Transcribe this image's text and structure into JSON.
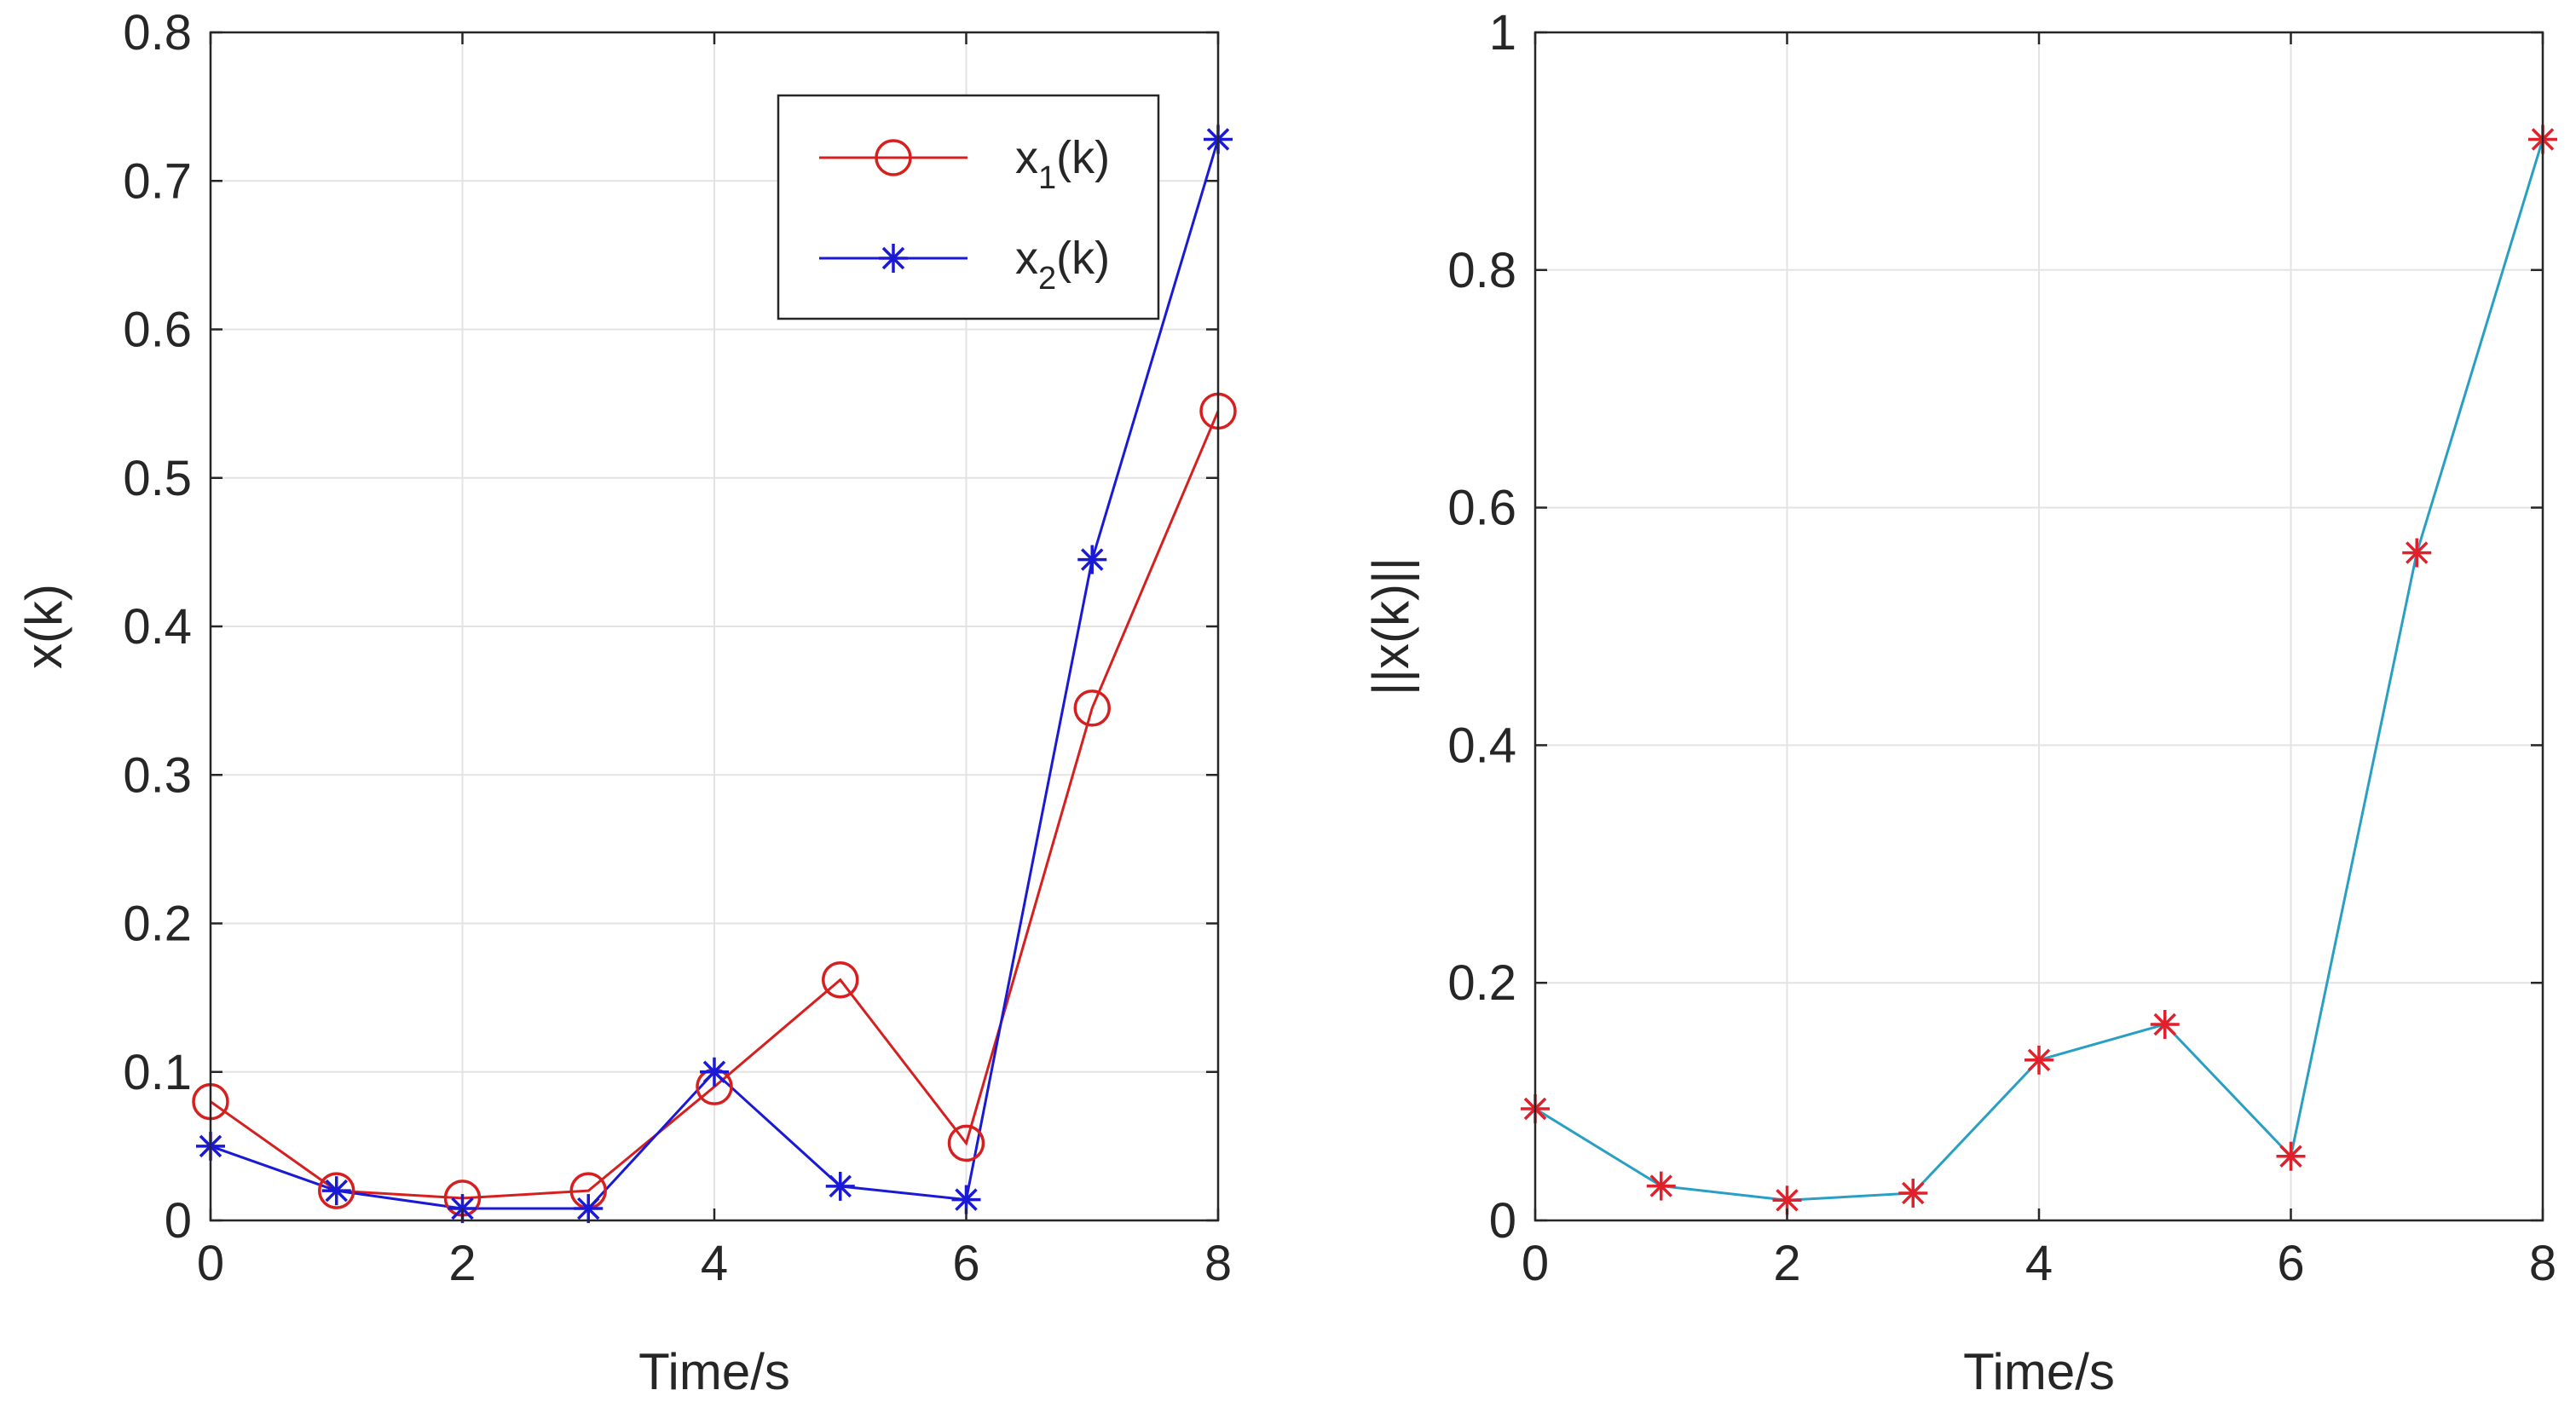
{
  "chart_data": [
    {
      "type": "line",
      "title": "",
      "xlabel": "Time/s",
      "ylabel": "x(k)",
      "xlim": [
        0,
        8
      ],
      "ylim": [
        0,
        0.8
      ],
      "xticks": [
        0,
        2,
        4,
        6,
        8
      ],
      "yticks": [
        0,
        0.1,
        0.2,
        0.3,
        0.4,
        0.5,
        0.6,
        0.7,
        0.8
      ],
      "xtick_labels": [
        "0",
        "2",
        "4",
        "6",
        "8"
      ],
      "ytick_labels": [
        "0",
        "0.1",
        "0.2",
        "0.3",
        "0.4",
        "0.5",
        "0.6",
        "0.7",
        "0.8"
      ],
      "grid": true,
      "legend_position": "top-right",
      "x": [
        0,
        1,
        2,
        3,
        4,
        5,
        6,
        7,
        8
      ],
      "series": [
        {
          "name": "x1(k)",
          "legend_base": "x",
          "legend_sub": "1",
          "legend_suffix": "(k)",
          "color": "#d62020",
          "marker": "circle",
          "values": [
            0.08,
            0.02,
            0.015,
            0.02,
            0.09,
            0.162,
            0.052,
            0.345,
            0.545
          ]
        },
        {
          "name": "x2(k)",
          "legend_base": "x",
          "legend_sub": "2",
          "legend_suffix": "(k)",
          "color": "#1a1ad6",
          "marker": "asterisk",
          "values": [
            0.05,
            0.02,
            0.008,
            0.008,
            0.1,
            0.023,
            0.014,
            0.445,
            0.728
          ]
        }
      ]
    },
    {
      "type": "line",
      "title": "",
      "xlabel": "Time/s",
      "ylabel": "||x(k)||",
      "xlim": [
        0,
        8
      ],
      "ylim": [
        0,
        1
      ],
      "xticks": [
        0,
        2,
        4,
        6,
        8
      ],
      "yticks": [
        0,
        0.2,
        0.4,
        0.6,
        0.8,
        1
      ],
      "xtick_labels": [
        "0",
        "2",
        "4",
        "6",
        "8"
      ],
      "ytick_labels": [
        "0",
        "0.2",
        "0.4",
        "0.6",
        "0.8",
        "1"
      ],
      "grid": true,
      "x": [
        0,
        1,
        2,
        3,
        4,
        5,
        6,
        7,
        8
      ],
      "series": [
        {
          "name": "||x(k)||",
          "color": "#2a9fc4",
          "marker_color": "#e0202a",
          "marker": "asterisk",
          "values": [
            0.094,
            0.029,
            0.017,
            0.023,
            0.135,
            0.165,
            0.054,
            0.562,
            0.91
          ]
        }
      ]
    }
  ]
}
